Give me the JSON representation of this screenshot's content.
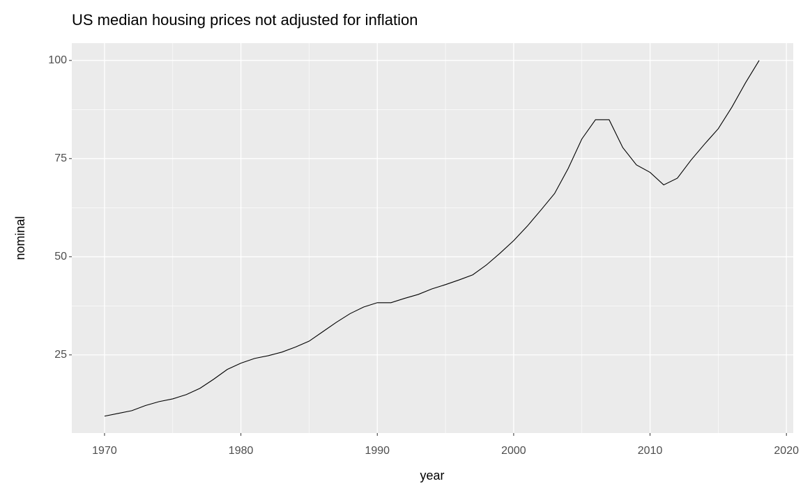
{
  "chart_data": {
    "type": "line",
    "title": "US median housing prices not adjusted for inflation",
    "x_label": "year",
    "y_label": "nominal",
    "x": [
      1970,
      1971,
      1972,
      1973,
      1974,
      1975,
      1976,
      1977,
      1978,
      1979,
      1980,
      1981,
      1982,
      1983,
      1984,
      1985,
      1986,
      1987,
      1988,
      1989,
      1990,
      1991,
      1992,
      1993,
      1994,
      1995,
      1996,
      1997,
      1998,
      1999,
      2000,
      2001,
      2002,
      2003,
      2004,
      2005,
      2006,
      2007,
      2008,
      2009,
      2010,
      2011,
      2012,
      2013,
      2014,
      2015,
      2016,
      2017,
      2018
    ],
    "series": [
      {
        "color": "#000000",
        "values": [
          9.4,
          10.1,
          10.8,
          12.1,
          13.1,
          13.8,
          14.9,
          16.5,
          18.8,
          21.3,
          22.9,
          24.1,
          24.8,
          25.7,
          27.0,
          28.5,
          30.9,
          33.3,
          35.5,
          37.2,
          38.3,
          38.3,
          39.4,
          40.4,
          41.8,
          42.9,
          44.1,
          45.4,
          47.9,
          50.9,
          54.1,
          57.8,
          61.9,
          66.1,
          72.5,
          80.0,
          84.9,
          84.9,
          77.8,
          73.4,
          71.5,
          68.3,
          70.0,
          74.6,
          78.7,
          82.6,
          88.1,
          94.3,
          100
        ]
      }
    ],
    "xlim": [
      1967.6,
      2020.5
    ],
    "xticks": [
      1970,
      1980,
      1990,
      2000,
      2010,
      2020
    ],
    "ylim": [
      5.1,
      104.4
    ],
    "yticks": [
      25,
      50,
      75,
      100
    ],
    "grid": true
  }
}
